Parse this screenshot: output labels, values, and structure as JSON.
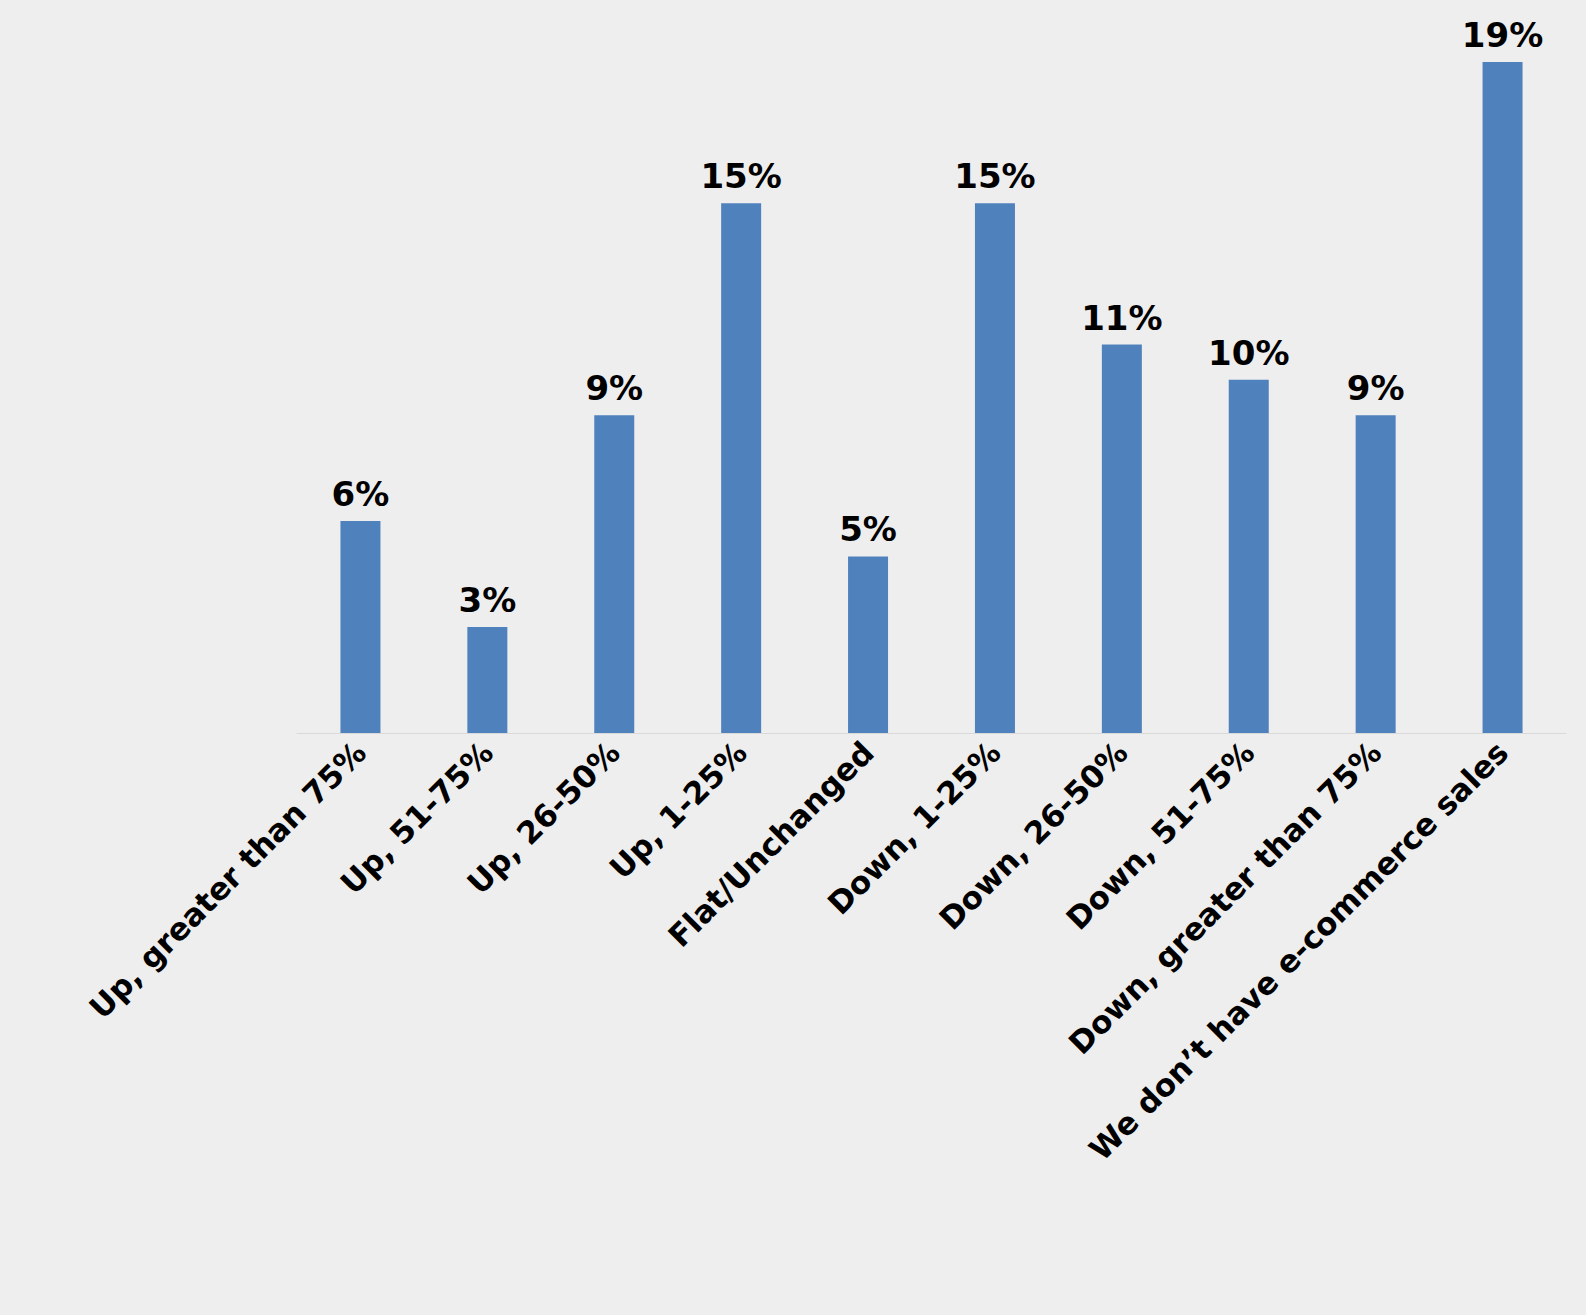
{
  "chart_data": {
    "type": "bar",
    "categories": [
      "Up, greater than 75%",
      "Up, 51-75%",
      "Up, 26-50%",
      "Up, 1-25%",
      "Flat/Unchanged",
      "Down, 1-25%",
      "Down, 26-50%",
      "Down, 51-75%",
      "Down, greater than 75%",
      "We don’t have e-commerce sales"
    ],
    "values": [
      6,
      3,
      9,
      15,
      5,
      15,
      11,
      10,
      9,
      19
    ],
    "value_labels": [
      "6%",
      "3%",
      "9%",
      "15%",
      "5%",
      "15%",
      "11%",
      "10%",
      "9%",
      "19%"
    ],
    "color": "#4f81bd",
    "ylim": [
      0,
      19
    ],
    "grid": false,
    "data_labels": true,
    "tick_labels": "x"
  }
}
